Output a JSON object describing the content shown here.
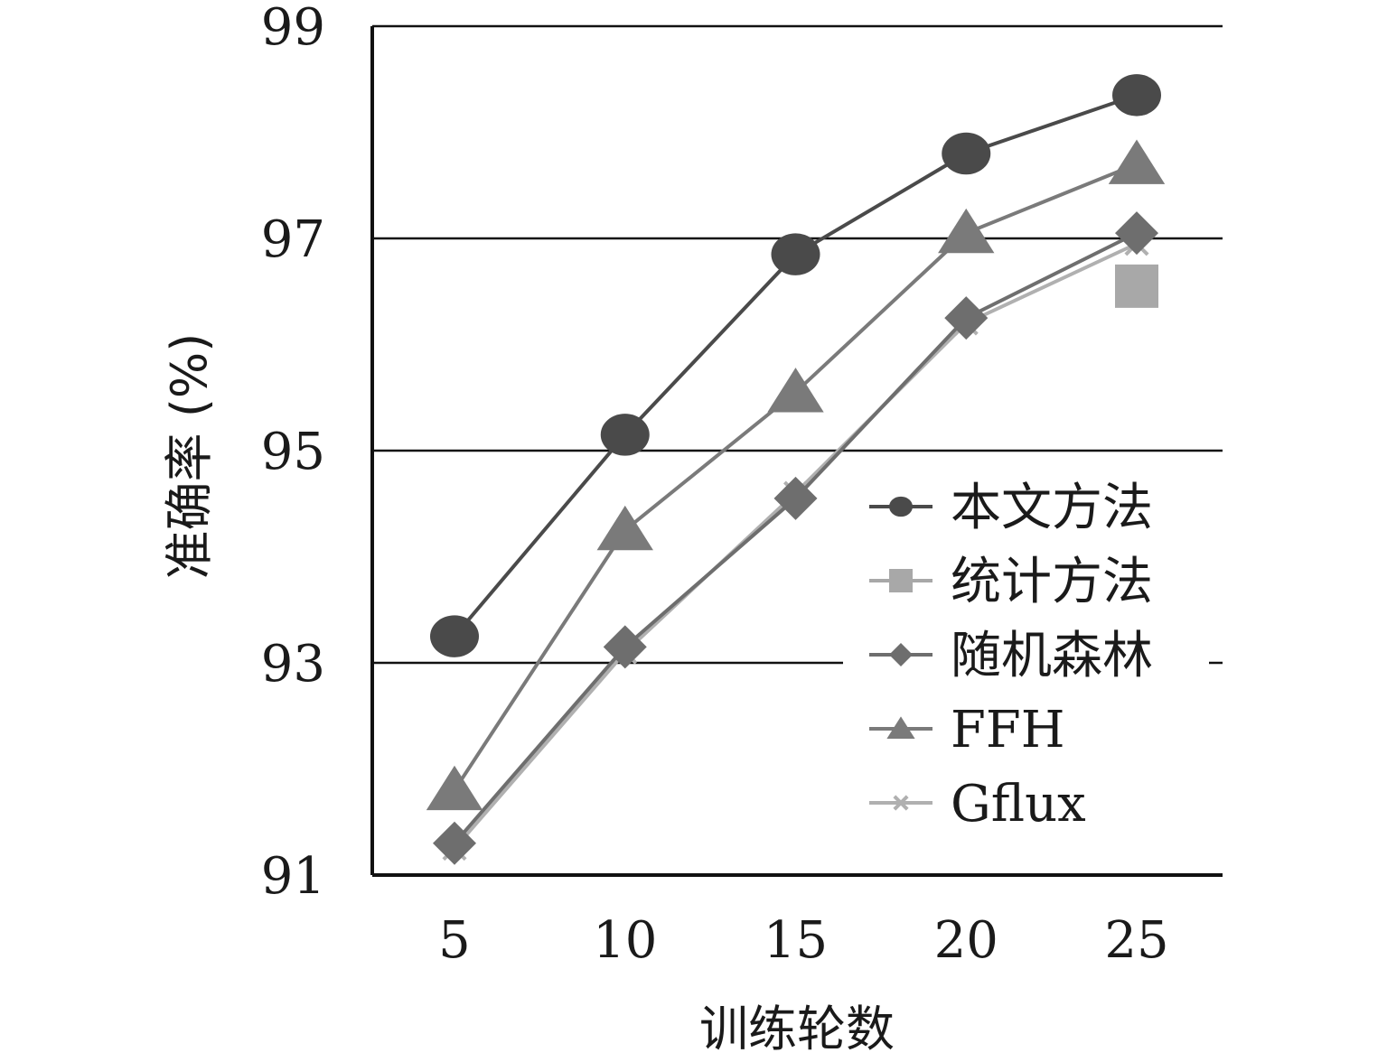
{
  "chart_data": {
    "type": "line",
    "xlabel": "训练轮数",
    "ylabel": "准确率 (%)",
    "x": [
      5,
      10,
      15,
      20,
      25
    ],
    "ylim": [
      91,
      99
    ],
    "yticks": [
      91,
      93,
      95,
      97,
      99
    ],
    "grid": true,
    "legend_position": "bottom-right",
    "series": [
      {
        "name": "本文方法",
        "marker": "circle",
        "color": "#4a4a4a",
        "values": [
          93.25,
          95.15,
          96.85,
          97.8,
          98.35
        ]
      },
      {
        "name": "统计方法",
        "marker": "square",
        "color": "#a8a8a8",
        "values": [
          null,
          null,
          null,
          null,
          96.55
        ]
      },
      {
        "name": "随机森林",
        "marker": "diamond",
        "color": "#6e6e6e",
        "values": [
          91.3,
          93.15,
          94.55,
          96.25,
          97.05
        ]
      },
      {
        "name": "FFH",
        "marker": "triangle",
        "color": "#7a7a7a",
        "values": [
          91.8,
          94.25,
          95.55,
          97.05,
          97.7
        ]
      },
      {
        "name": "Gflux",
        "marker": "x",
        "color": "#b0b0b0",
        "values": [
          91.25,
          93.1,
          94.6,
          96.2,
          96.95
        ]
      }
    ]
  }
}
